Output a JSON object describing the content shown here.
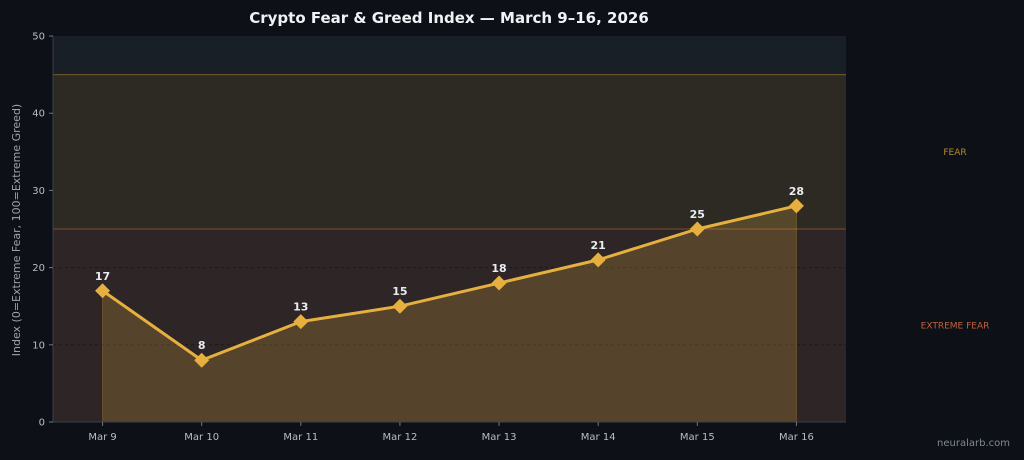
{
  "chart_data": {
    "type": "line",
    "title": "Crypto Fear & Greed Index — March 9–16, 2026",
    "xlabel": "",
    "ylabel": "Index (0=Extreme Fear, 100=Extreme Greed)",
    "categories": [
      "Mar 9",
      "Mar 10",
      "Mar 11",
      "Mar 12",
      "Mar 13",
      "Mar 14",
      "Mar 15",
      "Mar 16"
    ],
    "series": [
      {
        "values": [
          17,
          8,
          13,
          15,
          18,
          21,
          25,
          28
        ]
      }
    ],
    "ylim": [
      0,
      50
    ],
    "yticks": [
      0,
      10,
      20,
      30,
      40,
      50
    ],
    "zones": [
      {
        "label": "EXTREME FEAR",
        "from": 0,
        "to": 25,
        "color": "#c0603f"
      },
      {
        "label": "FEAR",
        "from": 25,
        "to": 45,
        "color": "#b58a2e"
      },
      {
        "label": "",
        "from": 45,
        "to": 50,
        "color": "#2a3a4a"
      }
    ],
    "grid": false,
    "line_color": "#e6b040",
    "marker": "diamond"
  },
  "watermark": "neuralarb.com"
}
